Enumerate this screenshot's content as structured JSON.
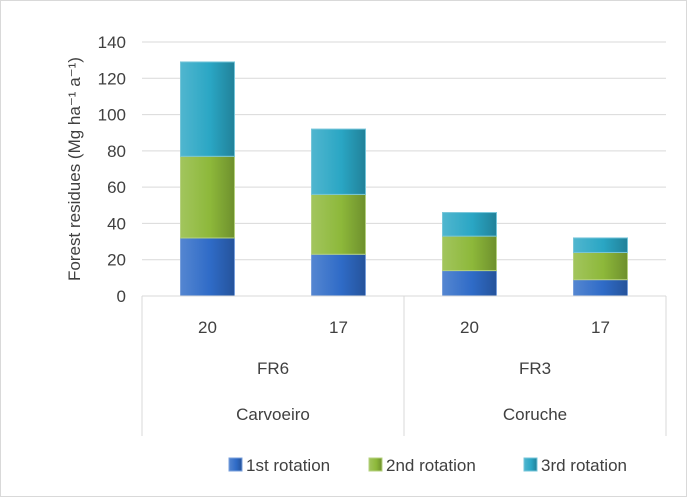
{
  "chart_data": {
    "type": "bar",
    "stacked": true,
    "ylabel": "Forest residues (Mg ha⁻¹ a⁻¹)",
    "ylim": [
      0,
      140
    ],
    "yticks": [
      0,
      20,
      40,
      60,
      80,
      100,
      120,
      140
    ],
    "grid": true,
    "legend_position": "bottom",
    "categories": [
      {
        "label": "20",
        "group": "FR6",
        "site": "Carvoeiro"
      },
      {
        "label": "17",
        "group": "FR6",
        "site": "Carvoeiro"
      },
      {
        "label": "20",
        "group": "FR3",
        "site": "Coruche"
      },
      {
        "label": "17",
        "group": "FR3",
        "site": "Coruche"
      }
    ],
    "groups": [
      {
        "label": "FR6",
        "site": "Carvoeiro"
      },
      {
        "label": "FR3",
        "site": "Coruche"
      }
    ],
    "series": [
      {
        "name": "1st rotation",
        "color": "#2f6bc7",
        "values": [
          32,
          23,
          14,
          9
        ]
      },
      {
        "name": "2nd rotation",
        "color": "#8db83a",
        "values": [
          45,
          33,
          19,
          15
        ]
      },
      {
        "name": "3rd rotation",
        "color": "#2aa6c4",
        "values": [
          52,
          36,
          13,
          8
        ]
      }
    ]
  }
}
